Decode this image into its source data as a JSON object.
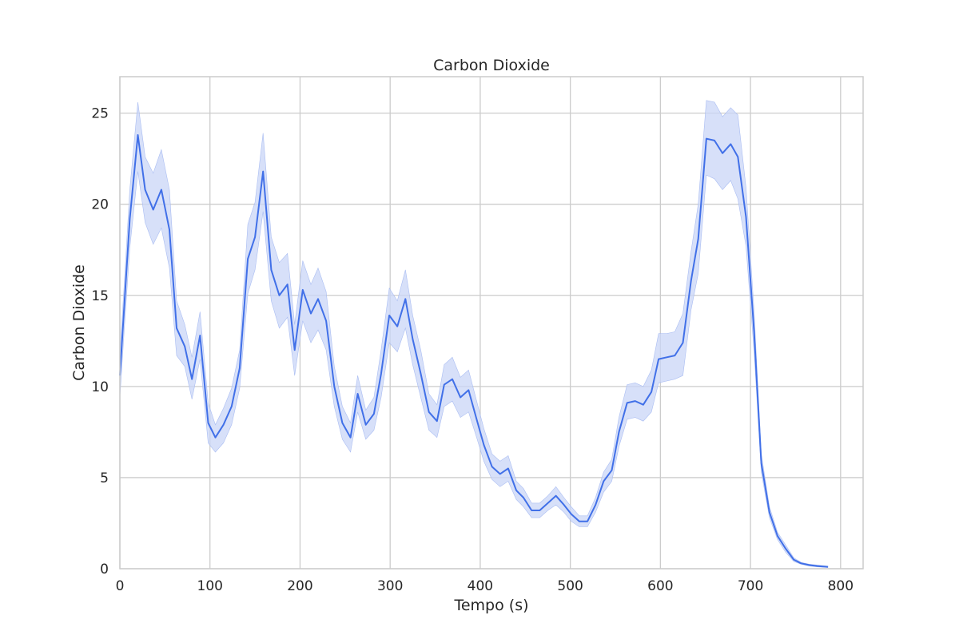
{
  "chart_data": {
    "type": "line",
    "title": "Carbon Dioxide",
    "xlabel": "Tempo (s)",
    "ylabel": "Carbon Dioxide",
    "xlim": [
      0,
      825
    ],
    "ylim": [
      0,
      27
    ],
    "xticks": [
      0,
      100,
      200,
      300,
      400,
      500,
      600,
      700,
      800
    ],
    "yticks": [
      0,
      5,
      10,
      15,
      20,
      25
    ],
    "grid": true,
    "legend": "none",
    "line_color": "#4170e8",
    "band_color": "#c9d6f7",
    "series": [
      {
        "x": [
          0,
          5,
          11,
          20,
          28,
          37,
          46,
          55,
          63,
          72,
          80,
          89,
          98,
          106,
          115,
          124,
          133,
          142,
          150,
          159,
          168,
          177,
          186,
          194,
          203,
          212,
          220,
          229,
          238,
          247,
          256,
          264,
          273,
          282,
          290,
          299,
          308,
          317,
          325,
          334,
          343,
          352,
          360,
          369,
          378,
          387,
          396,
          404,
          413,
          422,
          431,
          440,
          448,
          457,
          466,
          475,
          484,
          493,
          501,
          510,
          519,
          528,
          537,
          546,
          554,
          563,
          572,
          581,
          590,
          598,
          607,
          616,
          625,
          634,
          642,
          651,
          660,
          669,
          678,
          686,
          695,
          704,
          712,
          721,
          730,
          739,
          748,
          756,
          765,
          774,
          786
        ],
        "y": [
          10.6,
          14.5,
          19.2,
          23.8,
          20.8,
          19.7,
          20.8,
          18.6,
          13.2,
          12.2,
          10.4,
          12.8,
          8.0,
          7.2,
          7.9,
          8.9,
          11.0,
          17.0,
          18.2,
          21.8,
          16.4,
          15.0,
          15.6,
          12.0,
          15.3,
          14.0,
          14.8,
          13.6,
          10.0,
          8.0,
          7.2,
          9.6,
          7.9,
          8.5,
          10.7,
          13.9,
          13.3,
          14.8,
          12.6,
          10.7,
          8.6,
          8.1,
          10.1,
          10.4,
          9.4,
          9.8,
          8.2,
          6.8,
          5.6,
          5.2,
          5.5,
          4.3,
          3.9,
          3.2,
          3.2,
          3.6,
          4.0,
          3.5,
          3.0,
          2.6,
          2.6,
          3.5,
          4.8,
          5.4,
          7.5,
          9.1,
          9.2,
          9.0,
          9.7,
          11.5,
          11.6,
          11.7,
          12.4,
          15.8,
          18.1,
          23.6,
          23.5,
          22.8,
          23.3,
          22.6,
          19.3,
          13.0,
          5.8,
          3.1,
          1.8,
          1.1,
          0.5,
          0.3,
          0.2,
          0.15,
          0.1
        ],
        "lower": [
          9.4,
          13.2,
          17.6,
          21.8,
          19.0,
          17.8,
          18.7,
          16.5,
          11.7,
          11.1,
          9.3,
          11.5,
          6.9,
          6.4,
          6.9,
          7.9,
          9.9,
          15.1,
          16.4,
          19.6,
          14.7,
          13.2,
          13.8,
          10.6,
          13.6,
          12.4,
          13.1,
          12.0,
          8.9,
          7.1,
          6.4,
          8.6,
          7.1,
          7.6,
          9.4,
          12.4,
          11.9,
          13.2,
          11.2,
          9.4,
          7.6,
          7.2,
          8.9,
          9.2,
          8.3,
          8.6,
          7.2,
          5.9,
          4.9,
          4.5,
          4.8,
          3.8,
          3.4,
          2.8,
          2.8,
          3.2,
          3.5,
          3.1,
          2.6,
          2.3,
          2.3,
          3.1,
          4.2,
          4.8,
          6.7,
          8.2,
          8.3,
          8.1,
          8.6,
          10.2,
          10.3,
          10.4,
          10.6,
          14.2,
          16.2,
          21.6,
          21.4,
          20.8,
          21.3,
          20.3,
          17.7,
          11.9,
          5.3,
          2.8,
          1.6,
          0.9,
          0.4,
          0.25,
          0.15,
          0.1,
          0.07
        ],
        "upper": [
          11.8,
          15.7,
          20.8,
          25.6,
          22.6,
          21.7,
          23.0,
          20.8,
          14.7,
          13.4,
          11.6,
          14.1,
          9.1,
          7.9,
          8.8,
          9.9,
          12.0,
          18.9,
          20.1,
          23.9,
          18.2,
          16.8,
          17.3,
          13.4,
          16.9,
          15.6,
          16.5,
          15.2,
          11.1,
          8.9,
          8.0,
          10.6,
          8.7,
          9.4,
          12.0,
          15.4,
          14.7,
          16.4,
          13.9,
          12.0,
          9.6,
          9.0,
          11.2,
          11.6,
          10.5,
          10.9,
          9.2,
          7.7,
          6.3,
          5.9,
          6.2,
          4.8,
          4.4,
          3.6,
          3.6,
          4.0,
          4.5,
          3.9,
          3.4,
          2.9,
          2.9,
          3.9,
          5.3,
          6.0,
          8.3,
          10.1,
          10.2,
          10.0,
          10.9,
          12.9,
          12.9,
          13.0,
          14.0,
          17.4,
          20.0,
          25.7,
          25.6,
          24.8,
          25.3,
          24.9,
          20.9,
          14.1,
          6.3,
          3.4,
          2.0,
          1.3,
          0.6,
          0.35,
          0.25,
          0.2,
          0.14
        ]
      }
    ]
  }
}
